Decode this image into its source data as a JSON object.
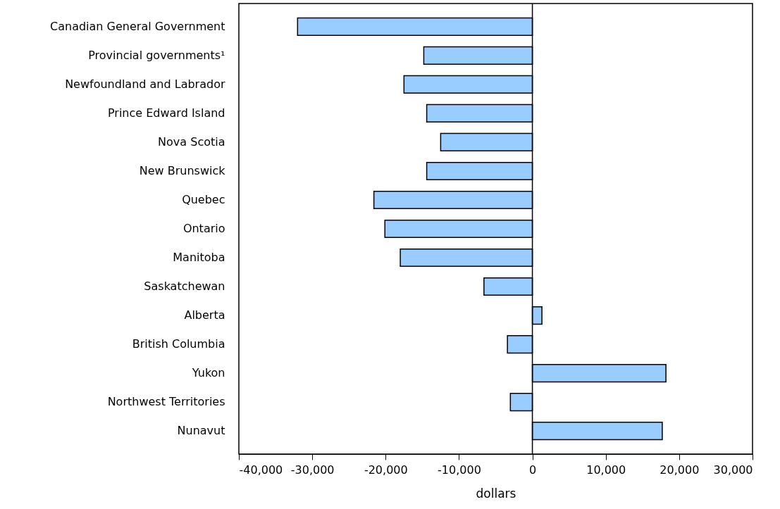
{
  "chart_data": {
    "type": "bar",
    "orientation": "horizontal",
    "xlabel": "dollars",
    "categories": [
      "Canadian General Government",
      "Provincial governments¹",
      "Newfoundland and Labrador",
      "Prince Edward Island",
      "Nova Scotia",
      "New Brunswick",
      "Quebec",
      "Ontario",
      "Manitoba",
      "Saskatchewan",
      "Alberta",
      "British Columbia",
      "Yukon",
      "Northwest Territories",
      "Nunavut"
    ],
    "values": [
      -32000,
      -14800,
      -17500,
      -14400,
      -12500,
      -14400,
      -21600,
      -20100,
      -18000,
      -6600,
      1300,
      -3400,
      18200,
      -3000,
      17700
    ],
    "color": "#99ccff",
    "xlim": [
      -40000,
      30000
    ],
    "xticks": [
      {
        "value": -40000,
        "label": "-40,000"
      },
      {
        "value": -30000,
        "label": "-30,000"
      },
      {
        "value": -20000,
        "label": "-20,000"
      },
      {
        "value": -10000,
        "label": "-10,000"
      },
      0,
      {
        "value": 10000,
        "label": "10,000"
      },
      {
        "value": 20000,
        "label": "20,000"
      },
      {
        "value": 30000,
        "label": "30,000"
      }
    ],
    "ref_lines": [
      {
        "axis": "x",
        "value": 0
      }
    ]
  }
}
